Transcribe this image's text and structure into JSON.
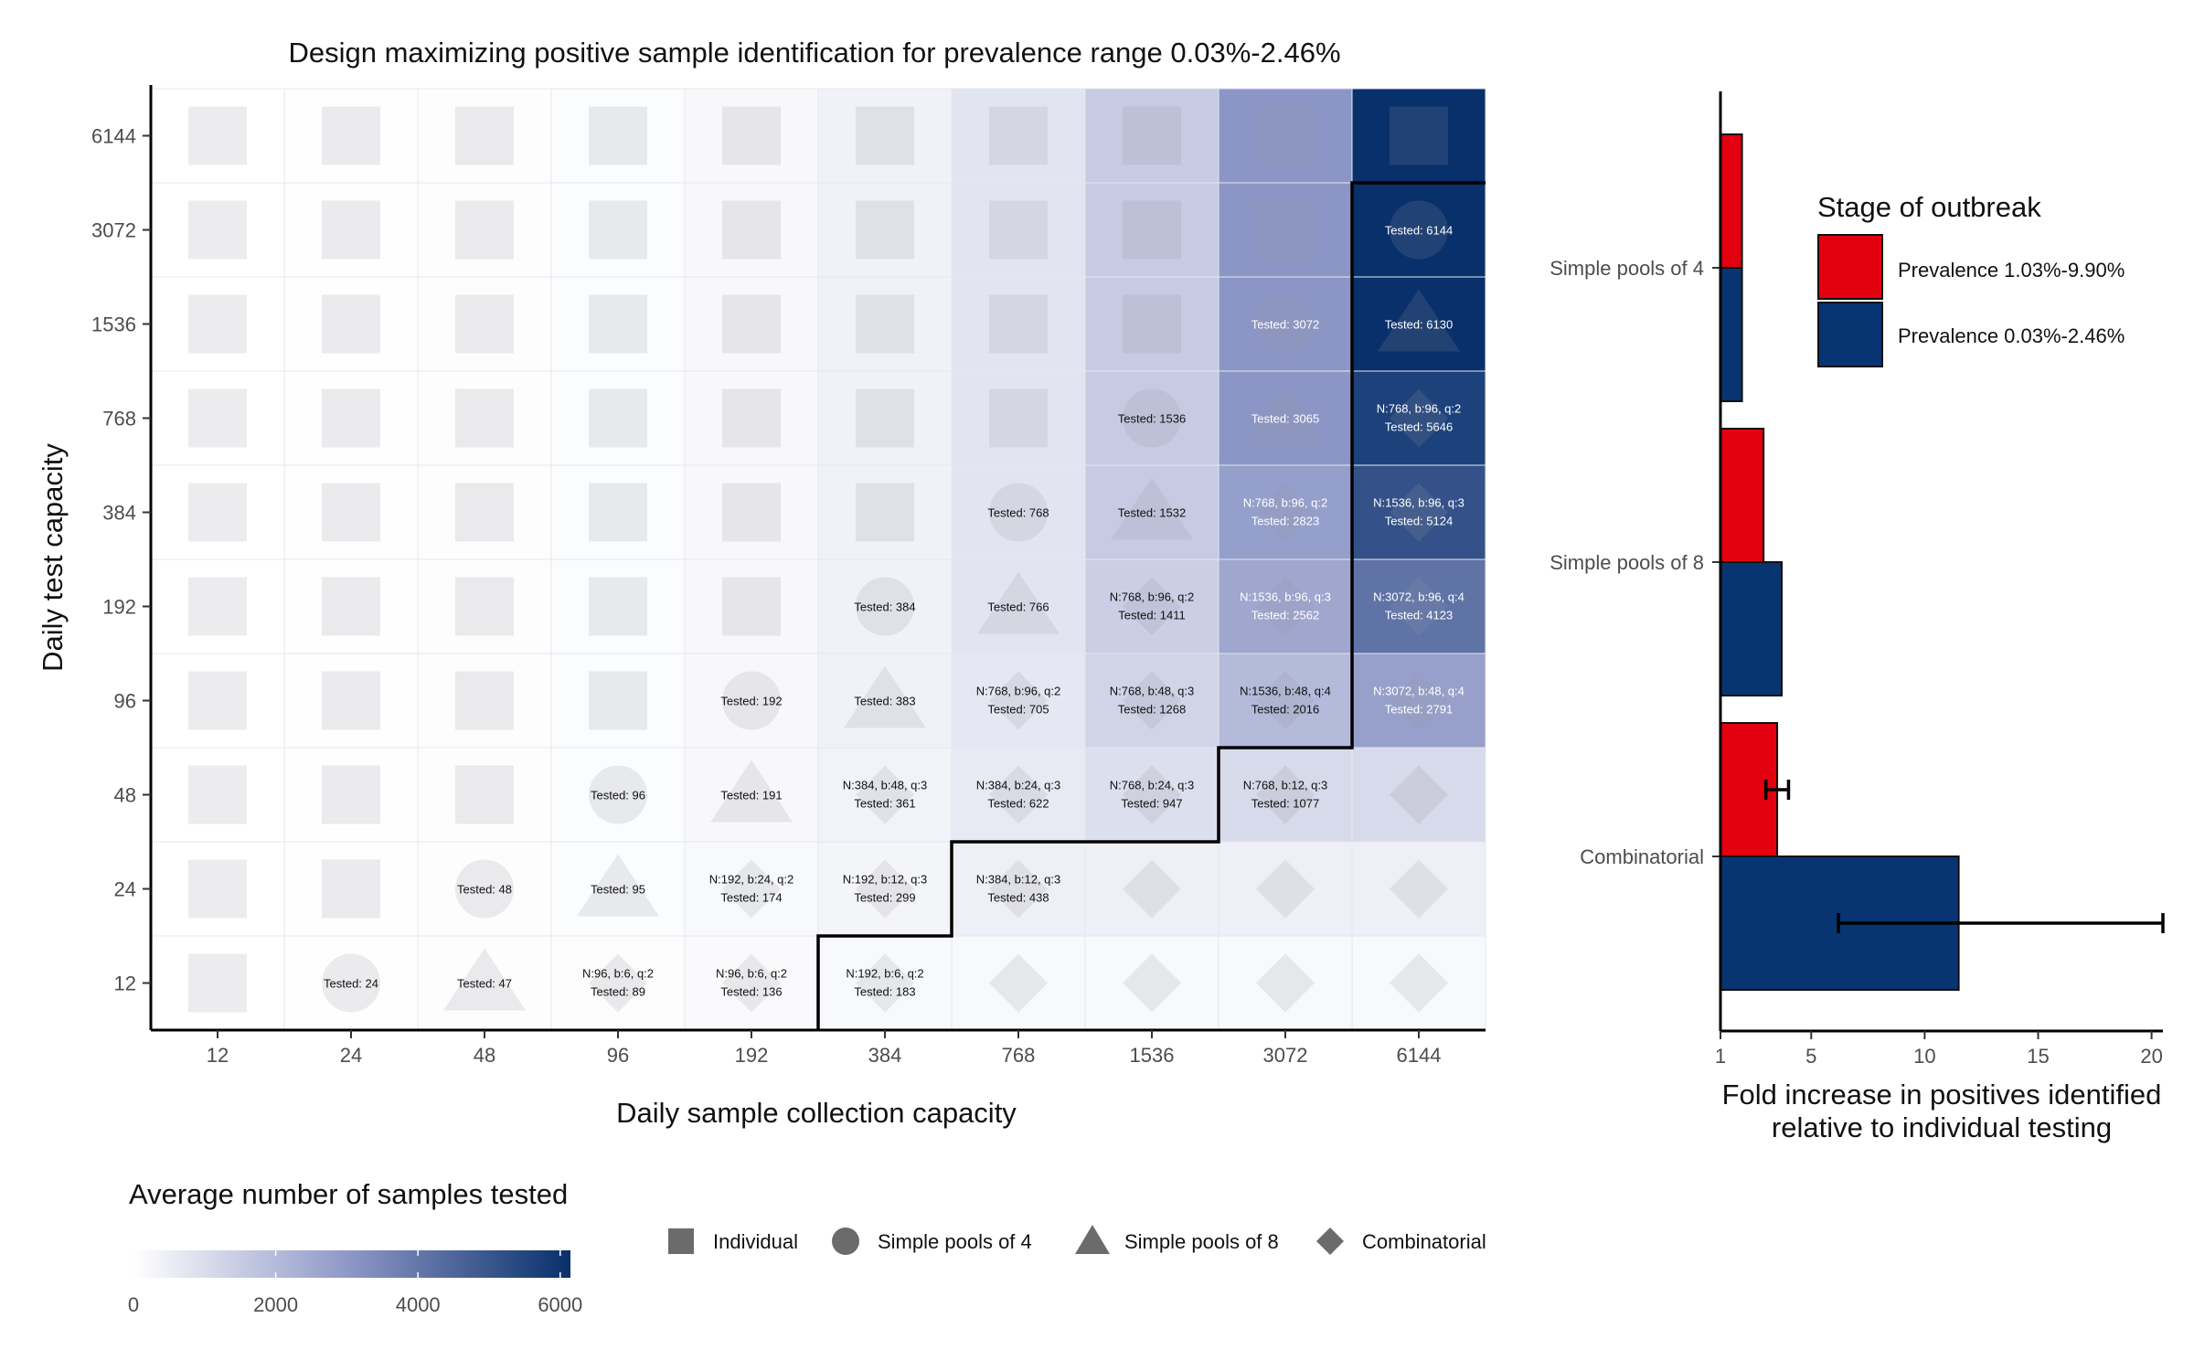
{
  "chart_data": [
    {
      "type": "heatmap",
      "title": "Design maximizing positive sample identification for prevalence range 0.03%-2.46%",
      "xlabel": "Daily sample collection capacity",
      "ylabel": "Daily test capacity",
      "x_categories": [
        "12",
        "24",
        "48",
        "96",
        "192",
        "384",
        "768",
        "1536",
        "3072",
        "6144"
      ],
      "y_categories": [
        "12",
        "24",
        "48",
        "96",
        "192",
        "384",
        "768",
        "1536",
        "3072",
        "6144"
      ],
      "colorbar": {
        "title": "Average number of samples tested",
        "range": [
          0,
          6144
        ],
        "ticks": [
          "0",
          "2000",
          "4000",
          "6000"
        ],
        "tick_values": [
          0,
          2000,
          4000,
          6000
        ],
        "color_low": "#ffffff",
        "color_high": "#08306b"
      },
      "shape_legend": [
        {
          "shape": "square",
          "label": "Individual"
        },
        {
          "shape": "circle",
          "label": "Simple pools of 4"
        },
        {
          "shape": "triangle",
          "label": "Simple pools of 8"
        },
        {
          "shape": "diamond",
          "label": "Combinatorial"
        }
      ],
      "cells": [
        {
          "x": "12",
          "y": "12",
          "shape": "square",
          "value": 12
        },
        {
          "x": "24",
          "y": "12",
          "shape": "circle",
          "value": 24,
          "lines": [
            "Tested: 24"
          ]
        },
        {
          "x": "48",
          "y": "12",
          "shape": "triangle",
          "value": 47,
          "lines": [
            "Tested: 47"
          ]
        },
        {
          "x": "96",
          "y": "12",
          "shape": "diamond",
          "value": 89,
          "lines": [
            "N:96, b:6, q:2",
            "Tested: 89"
          ]
        },
        {
          "x": "192",
          "y": "12",
          "shape": "diamond",
          "value": 136,
          "lines": [
            "N:96, b:6, q:2",
            "Tested: 136"
          ]
        },
        {
          "x": "384",
          "y": "12",
          "shape": "diamond",
          "value": 183,
          "lines": [
            "N:192, b:6, q:2",
            "Tested: 183"
          ]
        },
        {
          "x": "768",
          "y": "12",
          "shape": "diamond",
          "value": 183
        },
        {
          "x": "1536",
          "y": "12",
          "shape": "diamond",
          "value": 183
        },
        {
          "x": "3072",
          "y": "12",
          "shape": "diamond",
          "value": 183
        },
        {
          "x": "6144",
          "y": "12",
          "shape": "diamond",
          "value": 183
        },
        {
          "x": "12",
          "y": "24",
          "shape": "square",
          "value": 12
        },
        {
          "x": "24",
          "y": "24",
          "shape": "square",
          "value": 24
        },
        {
          "x": "48",
          "y": "24",
          "shape": "circle",
          "value": 48,
          "lines": [
            "Tested: 48"
          ]
        },
        {
          "x": "96",
          "y": "24",
          "shape": "triangle",
          "value": 95,
          "lines": [
            "Tested: 95"
          ]
        },
        {
          "x": "192",
          "y": "24",
          "shape": "diamond",
          "value": 174,
          "lines": [
            "N:192, b:24, q:2",
            "Tested: 174"
          ]
        },
        {
          "x": "384",
          "y": "24",
          "shape": "diamond",
          "value": 299,
          "lines": [
            "N:192, b:12, q:3",
            "Tested: 299"
          ]
        },
        {
          "x": "768",
          "y": "24",
          "shape": "diamond",
          "value": 438,
          "lines": [
            "N:384, b:12, q:3",
            "Tested: 438"
          ]
        },
        {
          "x": "1536",
          "y": "24",
          "shape": "diamond",
          "value": 438
        },
        {
          "x": "3072",
          "y": "24",
          "shape": "diamond",
          "value": 438
        },
        {
          "x": "6144",
          "y": "24",
          "shape": "diamond",
          "value": 438
        },
        {
          "x": "12",
          "y": "48",
          "shape": "square",
          "value": 12
        },
        {
          "x": "24",
          "y": "48",
          "shape": "square",
          "value": 24
        },
        {
          "x": "48",
          "y": "48",
          "shape": "square",
          "value": 48
        },
        {
          "x": "96",
          "y": "48",
          "shape": "circle",
          "value": 96,
          "lines": [
            "Tested: 96"
          ]
        },
        {
          "x": "192",
          "y": "48",
          "shape": "triangle",
          "value": 191,
          "lines": [
            "Tested: 191"
          ]
        },
        {
          "x": "384",
          "y": "48",
          "shape": "diamond",
          "value": 361,
          "lines": [
            "N:384, b:48, q:3",
            "Tested: 361"
          ]
        },
        {
          "x": "768",
          "y": "48",
          "shape": "diamond",
          "value": 622,
          "lines": [
            "N:384, b:24, q:3",
            "Tested: 622"
          ]
        },
        {
          "x": "1536",
          "y": "48",
          "shape": "diamond",
          "value": 947,
          "lines": [
            "N:768, b:24, q:3",
            "Tested: 947"
          ]
        },
        {
          "x": "3072",
          "y": "48",
          "shape": "diamond",
          "value": 1077,
          "lines": [
            "N:768, b:12, q:3",
            "Tested: 1077"
          ]
        },
        {
          "x": "6144",
          "y": "48",
          "shape": "diamond",
          "value": 1077
        },
        {
          "x": "12",
          "y": "96",
          "shape": "square",
          "value": 12
        },
        {
          "x": "24",
          "y": "96",
          "shape": "square",
          "value": 24
        },
        {
          "x": "48",
          "y": "96",
          "shape": "square",
          "value": 48
        },
        {
          "x": "96",
          "y": "96",
          "shape": "square",
          "value": 96
        },
        {
          "x": "192",
          "y": "96",
          "shape": "circle",
          "value": 192,
          "lines": [
            "Tested: 192"
          ]
        },
        {
          "x": "384",
          "y": "96",
          "shape": "triangle",
          "value": 383,
          "lines": [
            "Tested: 383"
          ]
        },
        {
          "x": "768",
          "y": "96",
          "shape": "diamond",
          "value": 705,
          "lines": [
            "N:768, b:96, q:2",
            "Tested: 705"
          ]
        },
        {
          "x": "1536",
          "y": "96",
          "shape": "diamond",
          "value": 1268,
          "lines": [
            "N:768, b:48, q:3",
            "Tested: 1268"
          ]
        },
        {
          "x": "3072",
          "y": "96",
          "shape": "diamond",
          "value": 2016,
          "lines": [
            "N:1536, b:48, q:4",
            "Tested: 2016"
          ]
        },
        {
          "x": "6144",
          "y": "96",
          "shape": "diamond",
          "value": 2791,
          "lines": [
            "N:3072, b:48, q:4",
            "Tested: 2791"
          ]
        },
        {
          "x": "12",
          "y": "192",
          "shape": "square",
          "value": 12
        },
        {
          "x": "24",
          "y": "192",
          "shape": "square",
          "value": 24
        },
        {
          "x": "48",
          "y": "192",
          "shape": "square",
          "value": 48
        },
        {
          "x": "96",
          "y": "192",
          "shape": "square",
          "value": 96
        },
        {
          "x": "192",
          "y": "192",
          "shape": "square",
          "value": 192
        },
        {
          "x": "384",
          "y": "192",
          "shape": "circle",
          "value": 384,
          "lines": [
            "Tested: 384"
          ]
        },
        {
          "x": "768",
          "y": "192",
          "shape": "triangle",
          "value": 766,
          "lines": [
            "Tested: 766"
          ]
        },
        {
          "x": "1536",
          "y": "192",
          "shape": "diamond",
          "value": 1411,
          "lines": [
            "N:768, b:96, q:2",
            "Tested: 1411"
          ]
        },
        {
          "x": "3072",
          "y": "192",
          "shape": "diamond",
          "value": 2562,
          "lines": [
            "N:1536, b:96, q:3",
            "Tested: 2562"
          ]
        },
        {
          "x": "6144",
          "y": "192",
          "shape": "diamond",
          "value": 4123,
          "lines": [
            "N:3072, b:96, q:4",
            "Tested: 4123"
          ]
        },
        {
          "x": "12",
          "y": "384",
          "shape": "square",
          "value": 12
        },
        {
          "x": "24",
          "y": "384",
          "shape": "square",
          "value": 24
        },
        {
          "x": "48",
          "y": "384",
          "shape": "square",
          "value": 48
        },
        {
          "x": "96",
          "y": "384",
          "shape": "square",
          "value": 96
        },
        {
          "x": "192",
          "y": "384",
          "shape": "square",
          "value": 192
        },
        {
          "x": "384",
          "y": "384",
          "shape": "square",
          "value": 384
        },
        {
          "x": "768",
          "y": "384",
          "shape": "circle",
          "value": 768,
          "lines": [
            "Tested: 768"
          ]
        },
        {
          "x": "1536",
          "y": "384",
          "shape": "triangle",
          "value": 1532,
          "lines": [
            "Tested: 1532"
          ]
        },
        {
          "x": "3072",
          "y": "384",
          "shape": "diamond",
          "value": 2823,
          "lines": [
            "N:768, b:96, q:2",
            "Tested: 2823"
          ]
        },
        {
          "x": "6144",
          "y": "384",
          "shape": "diamond",
          "value": 5124,
          "lines": [
            "N:1536, b:96, q:3",
            "Tested: 5124"
          ]
        },
        {
          "x": "12",
          "y": "768",
          "shape": "square",
          "value": 12
        },
        {
          "x": "24",
          "y": "768",
          "shape": "square",
          "value": 24
        },
        {
          "x": "48",
          "y": "768",
          "shape": "square",
          "value": 48
        },
        {
          "x": "96",
          "y": "768",
          "shape": "square",
          "value": 96
        },
        {
          "x": "192",
          "y": "768",
          "shape": "square",
          "value": 192
        },
        {
          "x": "384",
          "y": "768",
          "shape": "square",
          "value": 384
        },
        {
          "x": "768",
          "y": "768",
          "shape": "square",
          "value": 768
        },
        {
          "x": "1536",
          "y": "768",
          "shape": "circle",
          "value": 1536,
          "lines": [
            "Tested: 1536"
          ]
        },
        {
          "x": "3072",
          "y": "768",
          "shape": "triangle",
          "value": 3065,
          "lines": [
            "Tested: 3065"
          ]
        },
        {
          "x": "6144",
          "y": "768",
          "shape": "diamond",
          "value": 5646,
          "lines": [
            "N:768, b:96, q:2",
            "Tested: 5646"
          ]
        },
        {
          "x": "12",
          "y": "1536",
          "shape": "square",
          "value": 12
        },
        {
          "x": "24",
          "y": "1536",
          "shape": "square",
          "value": 24
        },
        {
          "x": "48",
          "y": "1536",
          "shape": "square",
          "value": 48
        },
        {
          "x": "96",
          "y": "1536",
          "shape": "square",
          "value": 96
        },
        {
          "x": "192",
          "y": "1536",
          "shape": "square",
          "value": 192
        },
        {
          "x": "384",
          "y": "1536",
          "shape": "square",
          "value": 384
        },
        {
          "x": "768",
          "y": "1536",
          "shape": "square",
          "value": 768
        },
        {
          "x": "1536",
          "y": "1536",
          "shape": "square",
          "value": 1536
        },
        {
          "x": "3072",
          "y": "1536",
          "shape": "circle",
          "value": 3072,
          "lines": [
            "Tested: 3072"
          ]
        },
        {
          "x": "6144",
          "y": "1536",
          "shape": "triangle",
          "value": 6130,
          "lines": [
            "Tested: 6130"
          ]
        },
        {
          "x": "12",
          "y": "3072",
          "shape": "square",
          "value": 12
        },
        {
          "x": "24",
          "y": "3072",
          "shape": "square",
          "value": 24
        },
        {
          "x": "48",
          "y": "3072",
          "shape": "square",
          "value": 48
        },
        {
          "x": "96",
          "y": "3072",
          "shape": "square",
          "value": 96
        },
        {
          "x": "192",
          "y": "3072",
          "shape": "square",
          "value": 192
        },
        {
          "x": "384",
          "y": "3072",
          "shape": "square",
          "value": 384
        },
        {
          "x": "768",
          "y": "3072",
          "shape": "square",
          "value": 768
        },
        {
          "x": "1536",
          "y": "3072",
          "shape": "square",
          "value": 1536
        },
        {
          "x": "3072",
          "y": "3072",
          "shape": "square",
          "value": 3072
        },
        {
          "x": "6144",
          "y": "3072",
          "shape": "circle",
          "value": 6144,
          "lines": [
            "Tested: 6144"
          ]
        },
        {
          "x": "12",
          "y": "6144",
          "shape": "square",
          "value": 12
        },
        {
          "x": "24",
          "y": "6144",
          "shape": "square",
          "value": 24
        },
        {
          "x": "48",
          "y": "6144",
          "shape": "square",
          "value": 48
        },
        {
          "x": "96",
          "y": "6144",
          "shape": "square",
          "value": 96
        },
        {
          "x": "192",
          "y": "6144",
          "shape": "square",
          "value": 192
        },
        {
          "x": "384",
          "y": "6144",
          "shape": "square",
          "value": 384
        },
        {
          "x": "768",
          "y": "6144",
          "shape": "square",
          "value": 768
        },
        {
          "x": "1536",
          "y": "6144",
          "shape": "square",
          "value": 1536
        },
        {
          "x": "3072",
          "y": "6144",
          "shape": "square",
          "value": 3072
        },
        {
          "x": "6144",
          "y": "6144",
          "shape": "square",
          "value": 6144
        }
      ]
    },
    {
      "type": "bar",
      "orientation": "horizontal",
      "xlabel": "Fold increase in positives identified relative to individual testing",
      "xlabel_lines": [
        "Fold increase in positives identified",
        "relative to individual testing"
      ],
      "ylabel": "",
      "xlim": [
        1,
        20.5
      ],
      "xticks": [
        "1",
        "5",
        "10",
        "15",
        "20"
      ],
      "xtick_values": [
        1,
        5,
        10,
        15,
        20
      ],
      "categories": [
        "Simple pools of 4",
        "Simple pools of 8",
        "Combinatorial"
      ],
      "legend": {
        "title": "Stage of outbreak",
        "position": "top-right"
      },
      "series": [
        {
          "name": "Prevalence 1.03%-9.90%",
          "color": "#e3000f",
          "values": [
            1.95,
            2.9,
            3.5
          ],
          "error": [
            null,
            null,
            [
              3.0,
              4.0
            ]
          ]
        },
        {
          "name": "Prevalence 0.03%-2.46%",
          "color": "#083471",
          "values": [
            1.95,
            3.7,
            11.5
          ],
          "error": [
            null,
            null,
            [
              6.2,
              20.5
            ]
          ]
        }
      ]
    }
  ]
}
